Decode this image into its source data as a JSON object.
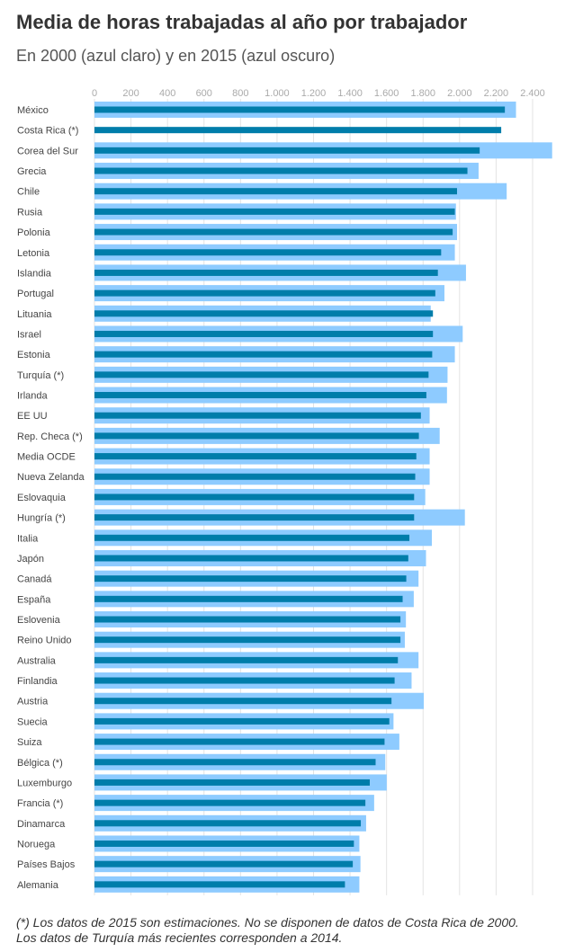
{
  "chart_data": {
    "type": "bar",
    "orientation": "horizontal",
    "title": "Media de horas trabajadas al año por trabajador",
    "subtitle": "En 2000 (azul claro) y en 2015 (azul oscuro)",
    "xlim": [
      0,
      2400
    ],
    "x_ticks": [
      "0",
      "200",
      "400",
      "600",
      "800",
      "1.000",
      "1.200",
      "1.400",
      "1.600",
      "1.800",
      "2.000",
      "2.200",
      "2.400"
    ],
    "grid": true,
    "categories": [
      "México",
      "Costa Rica (*)",
      "Corea del Sur",
      "Grecia",
      "Chile",
      "Rusia",
      "Polonia",
      "Letonia",
      "Islandia",
      "Portugal",
      "Lituania",
      "Israel",
      "Estonia",
      "Turquía (*)",
      "Irlanda",
      "EE UU",
      "Rep. Checa (*)",
      "Media OCDE",
      "Nueva Zelanda",
      "Eslovaquia",
      "Hungría (*)",
      "Italia",
      "Japón",
      "Canadá",
      "España",
      "Eslovenia",
      "Reino Unido",
      "Australia",
      "Finlandia",
      "Austria",
      "Suecia",
      "Suiza",
      "Bélgica (*)",
      "Luxemburgo",
      "Francia (*)",
      "Dinamarca",
      "Noruega",
      "Países Bajos",
      "Alemania"
    ],
    "series": [
      {
        "name": "2000",
        "color": "#8ECBFF",
        "values": [
          2309,
          null,
          2507,
          2104,
          2258,
          1980,
          1986,
          1974,
          2035,
          1917,
          1842,
          2017,
          1974,
          1934,
          1931,
          1836,
          1891,
          1836,
          1836,
          1812,
          2029,
          1848,
          1816,
          1775,
          1749,
          1706,
          1700,
          1775,
          1737,
          1804,
          1638,
          1670,
          1593,
          1601,
          1532,
          1488,
          1451,
          1457,
          1451
        ]
      },
      {
        "name": "2015",
        "color": "#007DAA",
        "values": [
          2248,
          2228,
          2110,
          2043,
          1986,
          1974,
          1962,
          1899,
          1881,
          1867,
          1854,
          1854,
          1850,
          1830,
          1818,
          1788,
          1777,
          1763,
          1757,
          1751,
          1751,
          1725,
          1719,
          1708,
          1688,
          1676,
          1676,
          1662,
          1644,
          1627,
          1615,
          1589,
          1540,
          1508,
          1484,
          1459,
          1421,
          1415,
          1372
        ]
      }
    ]
  },
  "footnote": {
    "line1": "(*) Los datos de 2015 son estimaciones. No se disponen de datos de Costa Rica de 2000.",
    "line2": "Los datos de Turquía más recientes corresponden a 2014."
  }
}
